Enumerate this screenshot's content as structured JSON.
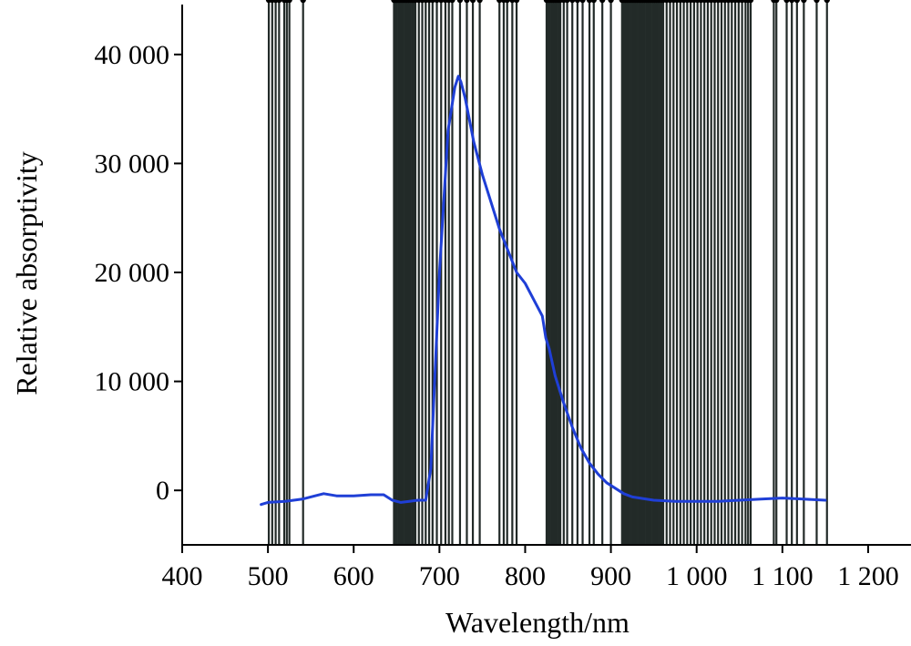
{
  "chart_data": {
    "type": "line",
    "title": "",
    "xlabel": "Wavelength/nm",
    "ylabel": "Relative absorptivity",
    "xlim": [
      400,
      1250
    ],
    "ylim": [
      -5000,
      45000
    ],
    "x_ticks": [
      400,
      500,
      600,
      700,
      800,
      900,
      1000,
      1100,
      1200
    ],
    "x_tick_labels": [
      "400",
      "500",
      "600",
      "700",
      "800",
      "900",
      "1 000",
      "1 100",
      "1 200"
    ],
    "y_ticks": [
      0,
      10000,
      20000,
      30000,
      40000
    ],
    "y_tick_labels": [
      "0",
      "10 000",
      "20 000",
      "30 000",
      "40 000"
    ],
    "grid": false,
    "series": [
      {
        "color": "#1f3fd6",
        "x": [
          492,
          500,
          520,
          540,
          555,
          565,
          580,
          600,
          620,
          635,
          645,
          655,
          665,
          675,
          680,
          684,
          690,
          700,
          710,
          718,
          722,
          725,
          730,
          740,
          750,
          760,
          770,
          780,
          790,
          800,
          810,
          820,
          824,
          828,
          835,
          845,
          855,
          865,
          875,
          885,
          895,
          905,
          915,
          925,
          950,
          975,
          1000,
          1025,
          1050,
          1075,
          1100,
          1125,
          1150
        ],
        "y": [
          -1300,
          -1100,
          -1000,
          -800,
          -500,
          -300,
          -500,
          -500,
          -400,
          -400,
          -900,
          -1100,
          -1000,
          -900,
          -900,
          -900,
          2000,
          20000,
          33000,
          37000,
          38000,
          37500,
          36000,
          32000,
          29000,
          26500,
          24000,
          22000,
          20000,
          19000,
          17500,
          16000,
          14000,
          13000,
          10500,
          8000,
          5800,
          3900,
          2500,
          1500,
          700,
          200,
          -300,
          -600,
          -900,
          -1000,
          -1000,
          -1000,
          -900,
          -800,
          -700,
          -800,
          -900
        ]
      }
    ],
    "marker_lines": [
      501,
      505,
      509,
      513,
      519,
      522,
      525,
      541,
      647,
      648,
      650,
      652,
      653,
      655,
      657,
      658,
      660,
      662,
      664,
      666,
      668,
      670,
      672,
      676,
      680,
      684,
      688,
      692,
      697,
      702,
      707,
      711,
      715,
      724,
      732,
      739,
      747,
      770,
      775,
      779,
      785,
      790,
      825,
      827,
      829,
      831,
      833,
      835,
      837,
      839,
      841,
      845,
      849,
      855,
      861,
      867,
      875,
      880,
      890,
      900,
      913,
      915,
      917,
      919,
      921,
      923,
      925,
      927,
      929,
      931,
      933,
      935,
      937,
      939,
      941,
      943,
      945,
      947,
      949,
      951,
      953,
      955,
      957,
      959,
      961,
      965,
      969,
      973,
      977,
      981,
      985,
      989,
      993,
      997,
      1001,
      1005,
      1009,
      1013,
      1017,
      1021,
      1025,
      1029,
      1033,
      1037,
      1041,
      1045,
      1049,
      1053,
      1057,
      1060,
      1063,
      1090,
      1093,
      1105,
      1111,
      1117,
      1125,
      1140,
      1152
    ],
    "marker_line_top": 45000,
    "marker_line_color": "#222a28"
  }
}
